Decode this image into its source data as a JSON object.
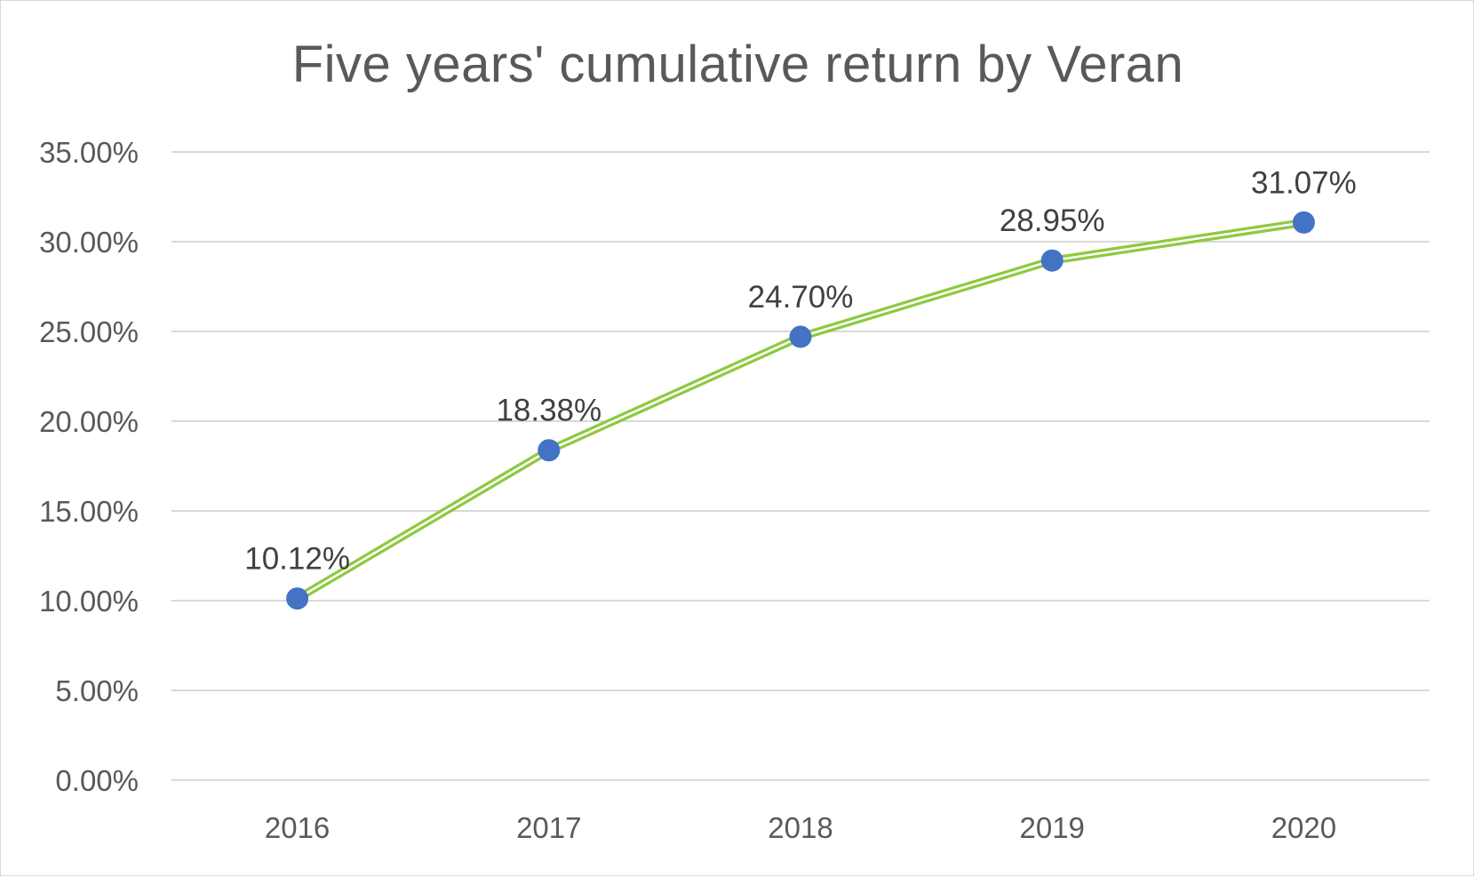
{
  "chart_data": {
    "type": "line",
    "title": "Five years' cumulative return by Veran",
    "xlabel": "",
    "ylabel": "",
    "categories": [
      "2016",
      "2017",
      "2018",
      "2019",
      "2020"
    ],
    "series": [
      {
        "values": [
          10.12,
          18.38,
          24.7,
          28.95,
          31.07
        ],
        "labels": [
          "10.12%",
          "18.38%",
          "24.70%",
          "28.95%",
          "31.07%"
        ],
        "line_color": "#8fc941",
        "marker_color": "#4472c4"
      }
    ],
    "ylim": [
      0,
      35
    ],
    "yticks": [
      0,
      5,
      10,
      15,
      20,
      25,
      30,
      35
    ],
    "ytick_labels": [
      "0.00%",
      "5.00%",
      "10.00%",
      "15.00%",
      "20.00%",
      "25.00%",
      "30.00%",
      "35.00%"
    ],
    "grid": "horizontal",
    "legend": "none",
    "gridline_color": "#d9d9d9",
    "text_color": "#595959"
  }
}
